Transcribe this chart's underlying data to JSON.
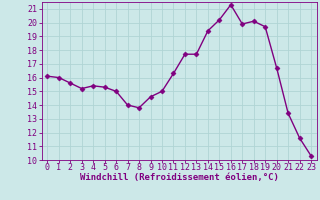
{
  "x": [
    0,
    1,
    2,
    3,
    4,
    5,
    6,
    7,
    8,
    9,
    10,
    11,
    12,
    13,
    14,
    15,
    16,
    17,
    18,
    19,
    20,
    21,
    22,
    23
  ],
  "y": [
    16.1,
    16.0,
    15.6,
    15.2,
    15.4,
    15.3,
    15.0,
    14.0,
    13.8,
    14.6,
    15.0,
    16.3,
    17.7,
    17.7,
    19.4,
    20.2,
    21.3,
    19.9,
    20.1,
    19.7,
    16.7,
    13.4,
    11.6,
    10.3
  ],
  "line_color": "#800080",
  "marker": "D",
  "marker_size": 2.5,
  "bg_color": "#cce8e8",
  "grid_color": "#b0d4d4",
  "xlabel": "Windchill (Refroidissement éolien,°C)",
  "ylim": [
    10,
    21.5
  ],
  "xlim": [
    -0.5,
    23.5
  ],
  "yticks": [
    10,
    11,
    12,
    13,
    14,
    15,
    16,
    17,
    18,
    19,
    20,
    21
  ],
  "xticks": [
    0,
    1,
    2,
    3,
    4,
    5,
    6,
    7,
    8,
    9,
    10,
    11,
    12,
    13,
    14,
    15,
    16,
    17,
    18,
    19,
    20,
    21,
    22,
    23
  ],
  "label_color": "#800080",
  "tick_color": "#800080",
  "font_size_xlabel": 6.5,
  "font_size_ticks": 6.0,
  "linewidth": 1.0
}
